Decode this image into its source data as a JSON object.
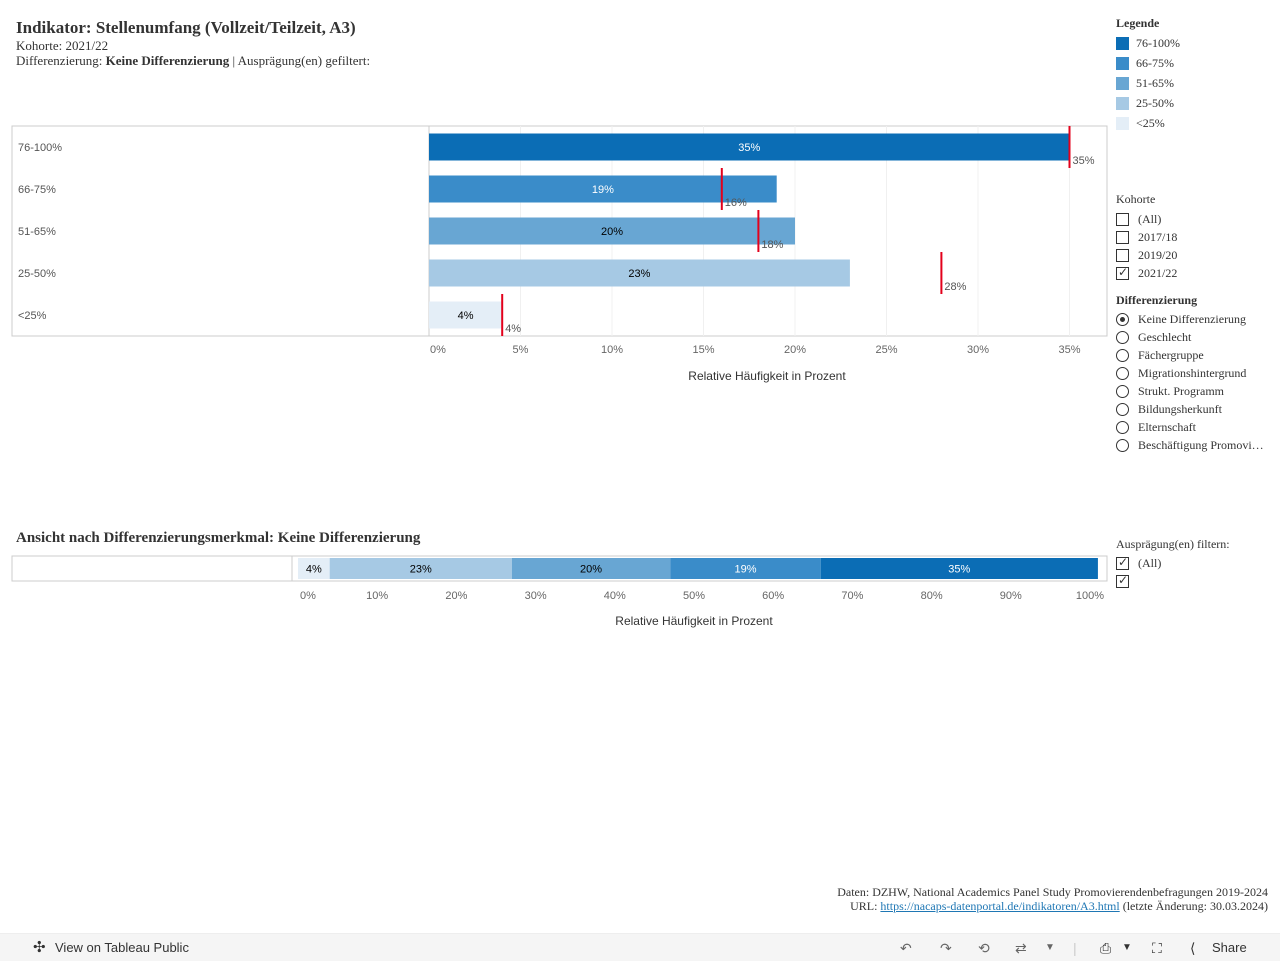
{
  "header": {
    "title": "Indikator: Stellenumfang (Vollzeit/Teilzeit, A3)",
    "kohorte_label": "Kohorte:",
    "kohorte_value": "2021/22",
    "diff_label": "Differenzierung:",
    "diff_value": "Keine Differenzierung",
    "filter_text": "| Ausprägung(en) gefiltert:"
  },
  "legend": {
    "title": "Legende",
    "items": [
      {
        "label": "76-100%",
        "color": "#0b6db5"
      },
      {
        "label": "66-75%",
        "color": "#3a8cc9"
      },
      {
        "label": "51-65%",
        "color": "#68a6d3"
      },
      {
        "label": "25-50%",
        "color": "#a6c9e4"
      },
      {
        "label": "<25%",
        "color": "#e4eef7"
      }
    ]
  },
  "kohorte_filter": {
    "title": "Kohorte",
    "options": [
      {
        "label": "(All)",
        "checked": false
      },
      {
        "label": "2017/18",
        "checked": false
      },
      {
        "label": "2019/20",
        "checked": false
      },
      {
        "label": "2021/22",
        "checked": true
      }
    ]
  },
  "differenzierung": {
    "title": "Differenzierung",
    "options": [
      {
        "label": "Keine Differenzierung",
        "selected": true
      },
      {
        "label": "Geschlecht",
        "selected": false
      },
      {
        "label": "Fächergruppe",
        "selected": false
      },
      {
        "label": "Migrationshintergrund",
        "selected": false
      },
      {
        "label": "Strukt. Programm",
        "selected": false
      },
      {
        "label": "Bildungsherkunft",
        "selected": false
      },
      {
        "label": "Elternschaft",
        "selected": false
      },
      {
        "label": "Beschäftigung Promovi…",
        "selected": false
      }
    ]
  },
  "auspraegung_filter": {
    "title": "Ausprägung(en) filtern:",
    "options": [
      {
        "label": "(All)",
        "checked": true
      },
      {
        "label": "",
        "checked": true
      }
    ]
  },
  "chart_data": [
    {
      "type": "bar",
      "orientation": "horizontal",
      "categories": [
        "76-100%",
        "66-75%",
        "51-65%",
        "25-50%",
        "<25%"
      ],
      "values": [
        35,
        19,
        20,
        23,
        4
      ],
      "value_labels": [
        "35%",
        "19%",
        "20%",
        "23%",
        "4%"
      ],
      "reference_values": [
        35,
        16,
        18,
        28,
        4
      ],
      "reference_labels": [
        "35%",
        "16%",
        "18%",
        "28%",
        "4%"
      ],
      "reference_color": "#e3001b",
      "bar_label_colors": [
        "#ffffff",
        "#ffffff",
        "#000000",
        "#000000",
        "#000000"
      ],
      "xlabel": "Relative Häufigkeit in Prozent",
      "xticks": [
        "0%",
        "5%",
        "10%",
        "15%",
        "20%",
        "25%",
        "30%",
        "35%"
      ],
      "xlim": [
        0,
        35
      ]
    },
    {
      "type": "bar",
      "orientation": "horizontal",
      "stacked": true,
      "title": "Ansicht nach Differenzierungsmerkmal: Keine Differenzierung",
      "segments": [
        {
          "category": "<25%",
          "value": 4,
          "label": "4%"
        },
        {
          "category": "25-50%",
          "value": 23,
          "label": "23%"
        },
        {
          "category": "51-65%",
          "value": 20,
          "label": "20%"
        },
        {
          "category": "66-75%",
          "value": 19,
          "label": "19%"
        },
        {
          "category": "76-100%",
          "value": 35,
          "label": "35%"
        }
      ],
      "xlabel": "Relative Häufigkeit in Prozent",
      "xticks": [
        "0%",
        "10%",
        "20%",
        "30%",
        "40%",
        "50%",
        "60%",
        "70%",
        "80%",
        "90%",
        "100%"
      ],
      "xlim": [
        0,
        100
      ]
    }
  ],
  "footer": {
    "source": "Daten: DZHW, National Academics Panel Study Promovierendenbefragungen 2019-2024",
    "url_label": "URL:",
    "url": "https://nacaps-datenportal.de/indikatoren/A3.html",
    "changed": "(letzte Änderung: 30.03.2024)"
  },
  "toolbar": {
    "view_label": "View on Tableau Public",
    "share_label": "Share"
  }
}
